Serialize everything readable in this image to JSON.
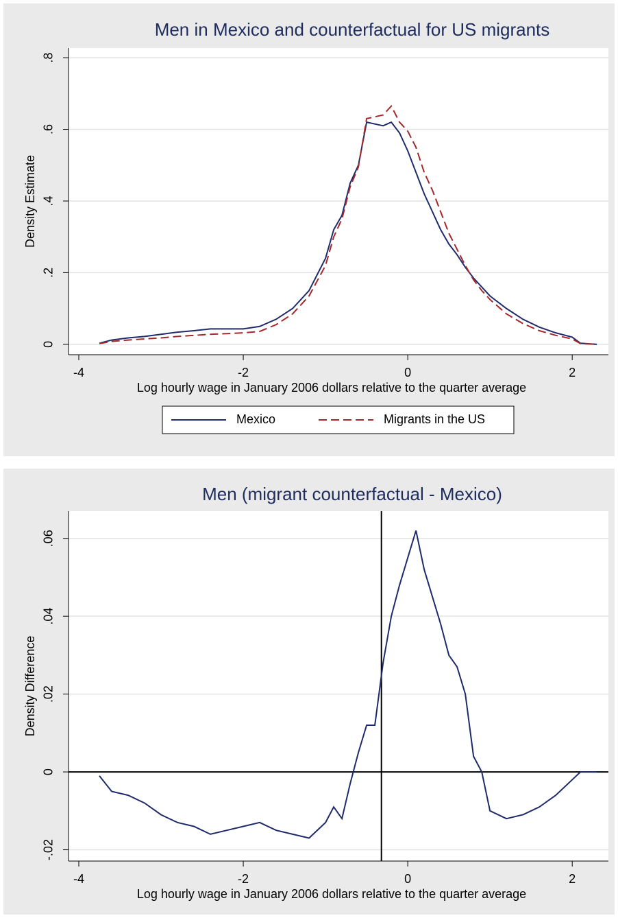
{
  "chart_data": [
    {
      "type": "line",
      "title": "Men in Mexico and counterfactual for US migrants",
      "x_label": "Log hourly wage in January 2006 dollars relative to the quarter average",
      "y_label": "Density Estimate",
      "x": [
        -3.75,
        -3.6,
        -3.4,
        -3.2,
        -3.0,
        -2.8,
        -2.6,
        -2.4,
        -2.2,
        -2.0,
        -1.8,
        -1.6,
        -1.4,
        -1.2,
        -1.0,
        -0.9,
        -0.8,
        -0.7,
        -0.6,
        -0.5,
        -0.4,
        -0.3,
        -0.2,
        -0.1,
        0.0,
        0.1,
        0.2,
        0.3,
        0.4,
        0.5,
        0.6,
        0.7,
        0.8,
        0.9,
        1.0,
        1.2,
        1.4,
        1.6,
        1.8,
        2.0,
        2.1,
        2.3
      ],
      "series": [
        {
          "name": "Mexico",
          "color": "#1f2a6b",
          "dashed": false,
          "values": [
            0.003,
            0.012,
            0.018,
            0.022,
            0.028,
            0.034,
            0.038,
            0.043,
            0.043,
            0.043,
            0.05,
            0.07,
            0.1,
            0.15,
            0.24,
            0.32,
            0.36,
            0.45,
            0.5,
            0.62,
            0.615,
            0.61,
            0.62,
            0.59,
            0.54,
            0.48,
            0.42,
            0.37,
            0.32,
            0.28,
            0.25,
            0.215,
            0.185,
            0.16,
            0.135,
            0.1,
            0.07,
            0.048,
            0.032,
            0.02,
            0.003,
            0.0
          ]
        },
        {
          "name": "Migrants in the US",
          "color": "#a3282b",
          "dashed": true,
          "values": [
            0.002,
            0.008,
            0.012,
            0.015,
            0.018,
            0.022,
            0.025,
            0.028,
            0.03,
            0.032,
            0.036,
            0.055,
            0.085,
            0.135,
            0.22,
            0.3,
            0.35,
            0.44,
            0.495,
            0.63,
            0.635,
            0.64,
            0.665,
            0.62,
            0.595,
            0.55,
            0.48,
            0.43,
            0.37,
            0.31,
            0.265,
            0.22,
            0.18,
            0.15,
            0.125,
            0.085,
            0.058,
            0.038,
            0.025,
            0.015,
            0.002,
            0.0
          ]
        }
      ],
      "xlim": [
        -4.125,
        2.44
      ],
      "xticks": [
        -4,
        -2,
        0,
        2
      ],
      "ylim": [
        -0.029,
        0.827
      ],
      "yticks": [
        0,
        {
          "value": 0.2,
          "label": ".2"
        },
        {
          "value": 0.4,
          "label": ".4"
        },
        {
          "value": 0.6,
          "label": ".6"
        },
        {
          "value": 0.8,
          "label": ".8"
        }
      ],
      "grid": true,
      "legend": "bottom"
    },
    {
      "type": "line",
      "title": "Men (migrant counterfactual - Mexico)",
      "x_label": "Log hourly wage in January 2006 dollars relative to the quarter average",
      "y_label": "Density Difference",
      "x": [
        -3.75,
        -3.6,
        -3.4,
        -3.2,
        -3.0,
        -2.8,
        -2.6,
        -2.4,
        -2.2,
        -2.0,
        -1.8,
        -1.6,
        -1.4,
        -1.2,
        -1.0,
        -0.9,
        -0.8,
        -0.7,
        -0.6,
        -0.5,
        -0.4,
        -0.3,
        -0.2,
        -0.1,
        0.0,
        0.1,
        0.2,
        0.3,
        0.4,
        0.5,
        0.6,
        0.7,
        0.8,
        0.9,
        1.0,
        1.2,
        1.4,
        1.6,
        1.8,
        2.0,
        2.1,
        2.3
      ],
      "values": [
        -0.001,
        -0.005,
        -0.006,
        -0.008,
        -0.011,
        -0.013,
        -0.014,
        -0.016,
        -0.015,
        -0.014,
        -0.013,
        -0.015,
        -0.016,
        -0.017,
        -0.013,
        -0.009,
        -0.012,
        -0.003,
        0.005,
        0.012,
        0.012,
        0.028,
        0.04,
        0.048,
        0.055,
        0.062,
        0.052,
        0.045,
        0.038,
        0.03,
        0.027,
        0.02,
        0.004,
        0.0,
        -0.01,
        -0.012,
        -0.011,
        -0.009,
        -0.006,
        -0.002,
        0.0,
        0.0
      ],
      "color": "#1f2a6b",
      "xlim": [
        -4.125,
        2.44
      ],
      "xticks": [
        -4,
        -2,
        0,
        2
      ],
      "ylim": [
        -0.0229,
        0.067
      ],
      "yticks": [
        {
          "value": -0.02,
          "label": "-.02"
        },
        0,
        {
          "value": 0.02,
          "label": ".02"
        },
        {
          "value": 0.04,
          "label": ".04"
        },
        {
          "value": 0.06,
          "label": ".06"
        }
      ],
      "grid": true,
      "hline": 0,
      "vline": -0.32
    }
  ]
}
